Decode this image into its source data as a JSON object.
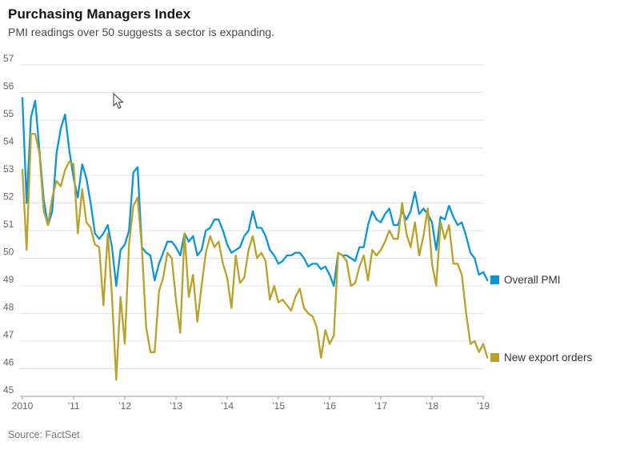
{
  "header": {
    "title": "Purchasing Managers Index",
    "subtitle": "PMI readings over 50 suggests a sector is expanding."
  },
  "source": "Source: FactSet",
  "colors": {
    "overall_pmi_line": "#0e94d2",
    "new_export_orders_line": "#b8a22b",
    "grid_line": "#e3e3e3",
    "axis_line": "#9a9a9a",
    "tick_label": "#666666",
    "title_text": "#141414",
    "subtitle_text": "#4a4a4a",
    "source_text": "#777777",
    "legend_text": "#333333"
  },
  "chart_data": {
    "type": "line",
    "title": "Purchasing Managers Index",
    "subtitle": "PMI readings over 50 suggests a sector is expanding.",
    "x_start": "2010-01",
    "x_end": "2019-02",
    "frequency": "monthly",
    "x_tick_labels": [
      "2010",
      "’11",
      "’12",
      "’13",
      "’14",
      "’15",
      "’16",
      "’17",
      "’18",
      "’19"
    ],
    "y_tick_labels": [
      "45",
      "46",
      "47",
      "48",
      "49",
      "50",
      "51",
      "52",
      "53",
      "54",
      "55",
      "56",
      "57"
    ],
    "ylim": [
      45,
      57
    ],
    "y_tick_step": 1,
    "grid": true,
    "legend_position": "right-of-line-end",
    "series": [
      {
        "name": "Overall PMI",
        "color": "#0e94d2",
        "values": [
          55.8,
          52.0,
          55.1,
          55.7,
          53.9,
          52.1,
          51.2,
          51.7,
          53.8,
          54.7,
          55.2,
          53.9,
          52.9,
          52.2,
          53.4,
          52.9,
          52.0,
          50.9,
          50.7,
          50.9,
          51.2,
          50.4,
          49.0,
          50.3,
          50.5,
          51.0,
          53.1,
          53.3,
          50.4,
          50.2,
          50.1,
          49.2,
          49.8,
          50.2,
          50.6,
          50.6,
          50.4,
          50.1,
          50.9,
          50.6,
          50.8,
          50.1,
          50.3,
          51.0,
          51.1,
          51.4,
          51.4,
          51.0,
          50.5,
          50.2,
          50.3,
          50.4,
          50.8,
          51.0,
          51.7,
          51.1,
          51.1,
          50.8,
          50.3,
          50.1,
          49.8,
          49.9,
          50.1,
          50.1,
          50.2,
          50.2,
          50.0,
          49.7,
          49.8,
          49.8,
          49.6,
          49.7,
          49.4,
          49.0,
          50.2,
          50.1,
          50.1,
          50.0,
          49.9,
          50.4,
          50.4,
          51.2,
          51.7,
          51.4,
          51.3,
          51.6,
          51.8,
          51.2,
          51.2,
          51.7,
          51.4,
          51.7,
          52.4,
          51.6,
          51.8,
          51.6,
          51.3,
          50.3,
          51.5,
          51.4,
          51.9,
          51.5,
          51.2,
          51.3,
          50.8,
          50.2,
          50.0,
          49.4,
          49.5,
          49.2
        ]
      },
      {
        "name": "New export orders",
        "color": "#b8a22b",
        "values": [
          53.2,
          50.3,
          54.5,
          54.5,
          53.8,
          51.7,
          51.2,
          52.2,
          52.8,
          52.6,
          53.2,
          53.5,
          53.4,
          50.9,
          52.5,
          51.3,
          51.1,
          50.5,
          50.4,
          48.3,
          50.9,
          48.6,
          45.6,
          48.6,
          46.9,
          50.5,
          51.9,
          52.2,
          50.4,
          47.5,
          46.6,
          46.6,
          48.8,
          49.3,
          50.2,
          50.0,
          48.5,
          47.3,
          50.9,
          48.6,
          49.4,
          47.7,
          49.0,
          50.2,
          50.8,
          50.4,
          50.6,
          49.8,
          49.3,
          48.2,
          50.1,
          49.1,
          49.3,
          50.3,
          50.8,
          50.0,
          50.2,
          49.9,
          48.5,
          49.0,
          48.4,
          48.5,
          48.3,
          48.1,
          48.6,
          48.9,
          48.2,
          48.0,
          47.9,
          47.5,
          46.4,
          47.4,
          46.9,
          47.2,
          50.2,
          50.1,
          49.9,
          49.0,
          49.1,
          49.7,
          50.1,
          49.2,
          50.3,
          50.1,
          50.3,
          50.6,
          51.0,
          50.7,
          50.7,
          52.0,
          50.9,
          50.4,
          51.3,
          50.1,
          50.8,
          51.8,
          49.8,
          49.0,
          51.3,
          50.7,
          51.2,
          49.8,
          49.8,
          49.4,
          48.0,
          46.9,
          47.0,
          46.6,
          46.9,
          46.4
        ]
      }
    ]
  }
}
